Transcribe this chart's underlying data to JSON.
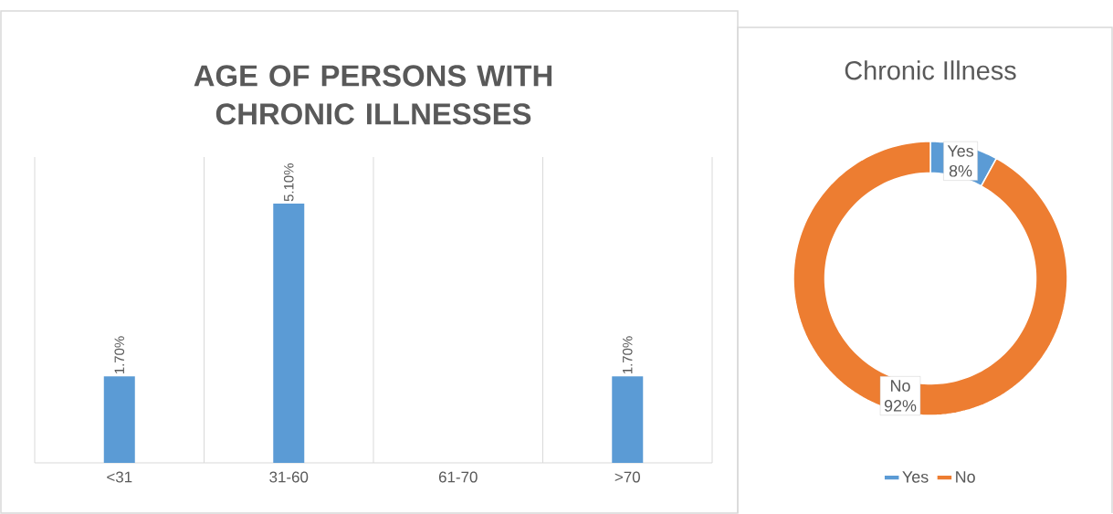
{
  "chart_data": [
    {
      "type": "bar",
      "title": "AGE OF PERSONS WITH CHRONIC ILLNESSES",
      "categories": [
        "<31",
        "31-60",
        "61-70",
        ">70"
      ],
      "values": [
        1.7,
        5.1,
        null,
        1.7
      ],
      "value_labels": [
        "1.70%",
        "5.10%",
        null,
        "1.70%"
      ],
      "color": "#5b9bd5",
      "grid": "x"
    },
    {
      "type": "donut",
      "title": "Chronic Illness",
      "categories": [
        "Yes",
        "No"
      ],
      "values": [
        8,
        92
      ],
      "value_labels": [
        "8%",
        "92%"
      ],
      "colors": [
        "#5b9bd5",
        "#ed7d31"
      ],
      "legend": "bottom"
    }
  ]
}
